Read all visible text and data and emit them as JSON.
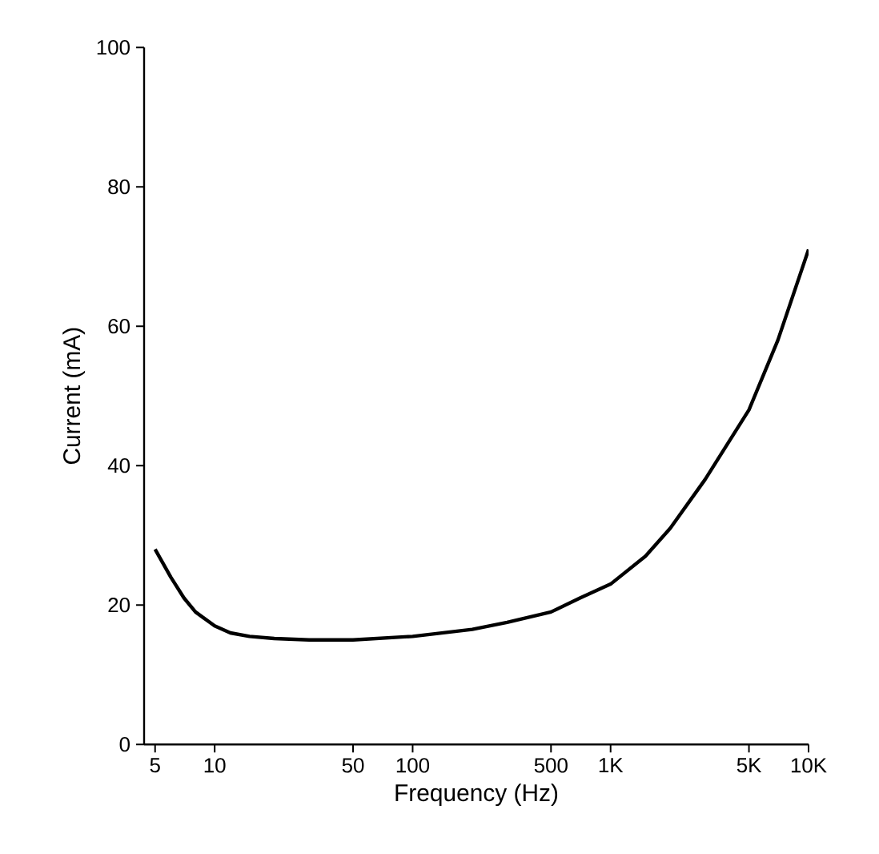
{
  "chart_data": {
    "type": "line",
    "xlabel": "Frequency (Hz)",
    "ylabel": "Current (mA)",
    "log": "x",
    "x": [
      5,
      6,
      7,
      8,
      10,
      12,
      15,
      20,
      30,
      50,
      100,
      200,
      300,
      500,
      700,
      1000,
      1500,
      2000,
      3000,
      5000,
      7000,
      10000
    ],
    "series": [
      {
        "color": "#000000",
        "values": [
          28,
          24,
          21,
          19,
          17,
          16,
          15.5,
          15.2,
          15,
          15,
          15.5,
          16.5,
          17.5,
          19,
          21,
          23,
          27,
          31,
          38,
          48,
          58,
          71
        ]
      }
    ],
    "xlim": [
      4.4,
      10000
    ],
    "ylim": [
      0,
      100
    ],
    "xticks": [
      5,
      10,
      50,
      100,
      500,
      {
        "value": 1000,
        "label": "1K"
      },
      {
        "value": 5000,
        "label": "5K"
      },
      {
        "value": 10000,
        "label": "10K"
      }
    ],
    "yticks": [
      0,
      20,
      40,
      60,
      80,
      100
    ],
    "grid": false,
    "marker": "none",
    "line_style": "solid"
  }
}
